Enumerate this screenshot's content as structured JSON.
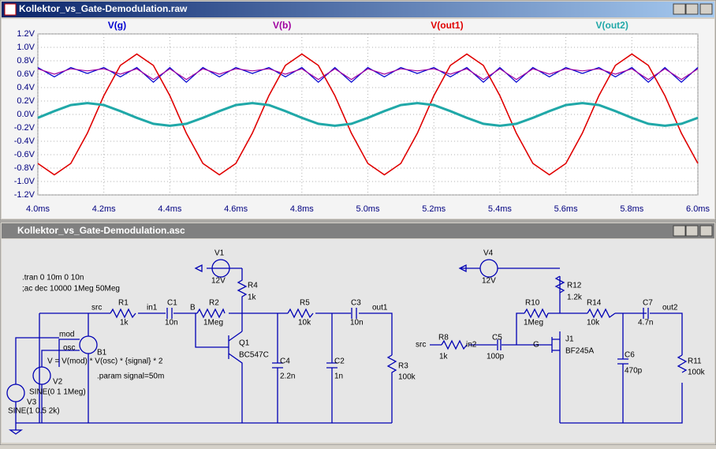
{
  "plot_window": {
    "title": "Kollektor_vs_Gate-Demodulation.raw"
  },
  "chart_data": {
    "type": "line",
    "x": [
      4.0,
      4.05,
      4.1,
      4.15,
      4.2,
      4.25,
      4.3,
      4.35,
      4.4,
      4.45,
      4.5,
      4.55,
      4.6,
      4.65,
      4.7,
      4.75,
      4.8,
      4.85,
      4.9,
      4.95,
      5.0,
      5.05,
      5.1,
      5.15,
      5.2,
      5.25,
      5.3,
      5.35,
      5.4,
      5.45,
      5.5,
      5.55,
      5.6,
      5.65,
      5.7,
      5.75,
      5.8,
      5.85,
      5.9,
      5.95,
      6.0
    ],
    "series": [
      {
        "name": "V(g)",
        "color": "#0000d0",
        "values": [
          0.7,
          0.56,
          0.7,
          0.61,
          0.7,
          0.56,
          0.7,
          0.48,
          0.7,
          0.48,
          0.7,
          0.56,
          0.7,
          0.61,
          0.7,
          0.56,
          0.7,
          0.48,
          0.7,
          0.48,
          0.7,
          0.56,
          0.7,
          0.61,
          0.7,
          0.56,
          0.7,
          0.48,
          0.7,
          0.48,
          0.7,
          0.56,
          0.7,
          0.61,
          0.7,
          0.56,
          0.7,
          0.48,
          0.7,
          0.48,
          0.7
        ]
      },
      {
        "name": "V(b)",
        "color": "#a000a0",
        "values": [
          0.68,
          0.6,
          0.68,
          0.65,
          0.68,
          0.6,
          0.68,
          0.52,
          0.68,
          0.52,
          0.68,
          0.6,
          0.68,
          0.65,
          0.68,
          0.6,
          0.68,
          0.52,
          0.68,
          0.52,
          0.68,
          0.6,
          0.68,
          0.65,
          0.68,
          0.6,
          0.68,
          0.52,
          0.68,
          0.52,
          0.68,
          0.6,
          0.68,
          0.65,
          0.68,
          0.6,
          0.68,
          0.52,
          0.68,
          0.52,
          0.68
        ]
      },
      {
        "name": "V(out1)",
        "color": "#e00000",
        "values": [
          -0.73,
          -0.9,
          -0.73,
          -0.28,
          0.28,
          0.73,
          0.9,
          0.73,
          0.28,
          -0.28,
          -0.73,
          -0.9,
          -0.73,
          -0.28,
          0.28,
          0.73,
          0.9,
          0.73,
          0.28,
          -0.28,
          -0.73,
          -0.9,
          -0.73,
          -0.28,
          0.28,
          0.73,
          0.9,
          0.73,
          0.28,
          -0.28,
          -0.73,
          -0.9,
          -0.73,
          -0.28,
          0.28,
          0.73,
          0.9,
          0.73,
          0.28,
          -0.28,
          -0.73
        ]
      },
      {
        "name": "V(out2)",
        "color": "#20a8a8",
        "values": [
          -0.05,
          0.05,
          0.14,
          0.17,
          0.14,
          0.05,
          -0.05,
          -0.14,
          -0.17,
          -0.14,
          -0.05,
          0.05,
          0.14,
          0.17,
          0.14,
          0.05,
          -0.05,
          -0.14,
          -0.17,
          -0.14,
          -0.05,
          0.05,
          0.14,
          0.17,
          0.14,
          0.05,
          -0.05,
          -0.14,
          -0.17,
          -0.14,
          -0.05,
          0.05,
          0.14,
          0.17,
          0.14,
          0.05,
          -0.05,
          -0.14,
          -0.17,
          -0.14,
          -0.05
        ]
      }
    ],
    "xlim": [
      4.0,
      6.0
    ],
    "ylim": [
      -1.2,
      1.2
    ],
    "xticks": [
      {
        "value": 4.0,
        "label": "4.0ms"
      },
      {
        "value": 4.2,
        "label": "4.2ms"
      },
      {
        "value": 4.4,
        "label": "4.4ms"
      },
      {
        "value": 4.6,
        "label": "4.6ms"
      },
      {
        "value": 4.8,
        "label": "4.8ms"
      },
      {
        "value": 5.0,
        "label": "5.0ms"
      },
      {
        "value": 5.2,
        "label": "5.2ms"
      },
      {
        "value": 5.4,
        "label": "5.4ms"
      },
      {
        "value": 5.6,
        "label": "5.6ms"
      },
      {
        "value": 5.8,
        "label": "5.8ms"
      },
      {
        "value": 6.0,
        "label": "6.0ms"
      }
    ],
    "yticks": [
      {
        "value": 1.2,
        "label": "1.2V"
      },
      {
        "value": 1.0,
        "label": "1.0V"
      },
      {
        "value": 0.8,
        "label": "0.8V"
      },
      {
        "value": 0.6,
        "label": "0.6V"
      },
      {
        "value": 0.4,
        "label": "0.4V"
      },
      {
        "value": 0.2,
        "label": "0.2V"
      },
      {
        "value": 0.0,
        "label": "0.0V"
      },
      {
        "value": -0.2,
        "label": "-0.2V"
      },
      {
        "value": -0.4,
        "label": "-0.4V"
      },
      {
        "value": -0.6,
        "label": "-0.6V"
      },
      {
        "value": -0.8,
        "label": "-0.8V"
      },
      {
        "value": -1.0,
        "label": "-1.0V"
      },
      {
        "value": -1.2,
        "label": "-1.2V"
      }
    ],
    "grid": true
  },
  "schematic_window": {
    "title": "Kollektor_vs_Gate-Demodulation.asc",
    "labels": [
      ".tran 0 10m 0 10n",
      ";ac dec 10000 1Meg 50Meg",
      "V1",
      "12V",
      "R4",
      "1k",
      "src",
      "R1",
      "1k",
      "in1",
      "C1",
      "10n",
      "B",
      "R2",
      "1Meg",
      "R5",
      "10k",
      "C3",
      "10n",
      "out1",
      "mod",
      "osc",
      "B1",
      "Q1",
      "BC547C",
      "V = V(mod) * V(osc) * {signal} * 2",
      "C4",
      "2.2n",
      "C2",
      "1n",
      "R3",
      "100k",
      "V2",
      ".param signal=50m",
      "SINE(0 1 1Meg)",
      "V3",
      "SINE(1 0.5 2k)",
      "V4",
      "12V",
      "R12",
      "1.2k",
      "R10",
      "1Meg",
      "R14",
      "10k",
      "C7",
      "4.7n",
      "out2",
      "src",
      "R8",
      "in2",
      "C5",
      "1k",
      "100p",
      "G",
      "J1",
      "BF245A",
      "C6",
      "470p",
      "R11",
      "100k"
    ]
  }
}
